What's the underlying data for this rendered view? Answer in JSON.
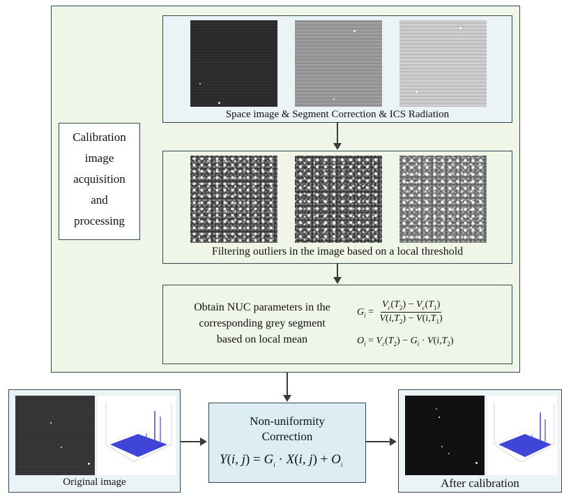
{
  "top_panel": {
    "side_label": [
      "Calibration",
      "image",
      "acquisition",
      "and",
      "processing"
    ],
    "step1": {
      "caption": "Space image & Segment Correction & ICS Radiation",
      "images": [
        {
          "icon": "dark-striped-space-image"
        },
        {
          "icon": "gray-striped-corrected-image"
        },
        {
          "icon": "light-striped-ics-radiation-image"
        }
      ]
    },
    "step2": {
      "caption": "Filtering outliers in the image based on a local threshold",
      "images": [
        {
          "icon": "speckled-filtered-image-1"
        },
        {
          "icon": "speckled-filtered-image-2"
        },
        {
          "icon": "speckled-filtered-image-3"
        }
      ]
    },
    "step3": {
      "text": [
        "Obtain NUC parameters in the",
        "corresponding grey segment",
        "based on local mean"
      ]
    }
  },
  "bottom_row": {
    "original": {
      "caption": "Original image"
    },
    "nuc": {
      "title_line1": "Non-uniformity",
      "title_line2": "Correction"
    },
    "after": {
      "caption": "After calibration"
    }
  },
  "colors": {
    "green_panel": "#eff5e7",
    "blue_panel": "#eaf3f6",
    "nuc_panel": "#dcedf3",
    "border": "#2e4750",
    "arrow": "#3a3a3a",
    "surface_plot": "#3f45d6"
  }
}
